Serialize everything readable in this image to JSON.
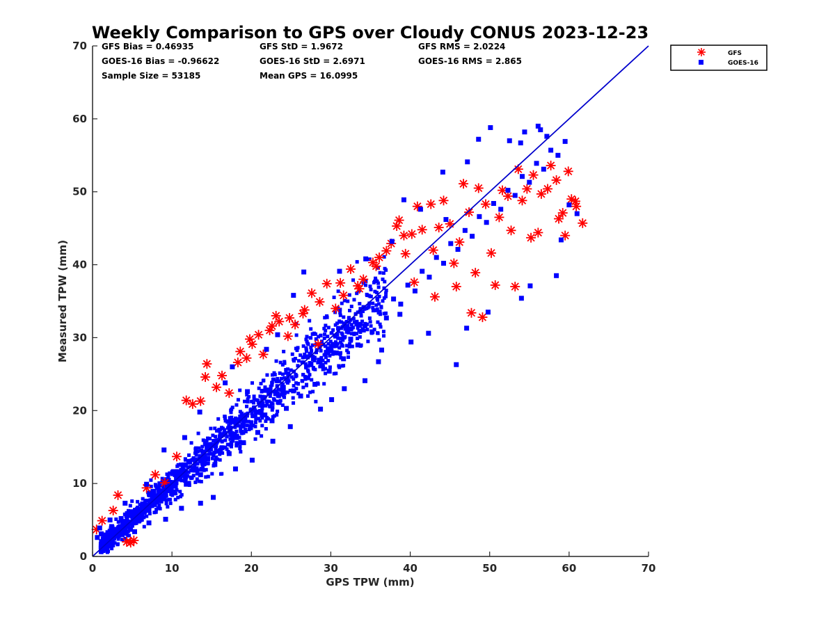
{
  "chart_data": {
    "type": "scatter",
    "title": "Weekly Comparison to GPS over Cloudy CONUS 2023-12-23",
    "xlabel": "GPS TPW (mm)",
    "ylabel": "Measured TPW (mm)",
    "xlim": [
      0,
      70
    ],
    "ylim": [
      0,
      70
    ],
    "xticks": [
      "0",
      "10",
      "20",
      "30",
      "40",
      "50",
      "60",
      "70"
    ],
    "yticks": [
      "0",
      "10",
      "20",
      "30",
      "40",
      "50",
      "60",
      "70"
    ],
    "grid": false,
    "legend_placement": "outside-top-right",
    "colors": {
      "GFS": "#ff0000",
      "GOES-16": "#0000ff",
      "reference_line": "#0000cc"
    },
    "stats": [
      [
        "GFS Bias = 0.46935",
        "GFS StD = 1.9672",
        "GFS RMS = 2.0224"
      ],
      [
        "GOES-16 Bias = -0.96622",
        "GOES-16 StD = 2.6971",
        "GOES-16 RMS = 2.865"
      ],
      [
        "Sample Size = 53185",
        "Mean GPS = 16.0995"
      ]
    ],
    "reference_line": {
      "x": [
        0,
        70
      ],
      "y": [
        0,
        70
      ]
    },
    "series": [
      {
        "name": "GFS",
        "marker": "asterisk",
        "points": [
          [
            0.5,
            3.7
          ],
          [
            1.2,
            4.9
          ],
          [
            2.6,
            6.3
          ],
          [
            3.2,
            8.4
          ],
          [
            4.3,
            2.0
          ],
          [
            4.8,
            1.9
          ],
          [
            5.2,
            2.2
          ],
          [
            6.8,
            9.4
          ],
          [
            7.9,
            11.2
          ],
          [
            9.1,
            10.1
          ],
          [
            10.6,
            13.7
          ],
          [
            11.8,
            21.4
          ],
          [
            12.6,
            20.9
          ],
          [
            13.6,
            21.3
          ],
          [
            14.2,
            24.6
          ],
          [
            14.4,
            26.4
          ],
          [
            15.6,
            23.2
          ],
          [
            16.3,
            24.8
          ],
          [
            17.2,
            22.4
          ],
          [
            18.3,
            26.6
          ],
          [
            18.6,
            28.1
          ],
          [
            19.4,
            27.2
          ],
          [
            20.1,
            29.1
          ],
          [
            20.9,
            30.4
          ],
          [
            21.5,
            27.7
          ],
          [
            22.3,
            31.0
          ],
          [
            23.1,
            33.0
          ],
          [
            23.5,
            32.2
          ],
          [
            24.6,
            30.2
          ],
          [
            25.5,
            31.8
          ],
          [
            26.5,
            33.3
          ],
          [
            27.6,
            36.1
          ],
          [
            28.6,
            34.9
          ],
          [
            29.5,
            37.4
          ],
          [
            30.6,
            34.0
          ],
          [
            31.6,
            35.8
          ],
          [
            32.5,
            39.4
          ],
          [
            33.4,
            37.1
          ],
          [
            34.1,
            38.0
          ],
          [
            35.3,
            40.3
          ],
          [
            36.1,
            41.0
          ],
          [
            37.0,
            41.9
          ],
          [
            37.6,
            42.9
          ],
          [
            38.3,
            45.3
          ],
          [
            38.6,
            46.1
          ],
          [
            39.2,
            44.0
          ],
          [
            39.4,
            41.5
          ],
          [
            40.2,
            44.2
          ],
          [
            40.5,
            37.6
          ],
          [
            40.9,
            48.0
          ],
          [
            41.5,
            44.8
          ],
          [
            42.6,
            48.3
          ],
          [
            43.1,
            35.6
          ],
          [
            43.6,
            45.1
          ],
          [
            44.2,
            48.8
          ],
          [
            45.0,
            45.6
          ],
          [
            45.5,
            40.2
          ],
          [
            46.2,
            43.1
          ],
          [
            46.7,
            51.1
          ],
          [
            47.4,
            47.2
          ],
          [
            47.7,
            33.4
          ],
          [
            48.2,
            38.9
          ],
          [
            48.6,
            50.5
          ],
          [
            49.1,
            32.8
          ],
          [
            49.5,
            48.3
          ],
          [
            50.2,
            41.6
          ],
          [
            50.7,
            37.2
          ],
          [
            51.2,
            46.5
          ],
          [
            51.6,
            50.2
          ],
          [
            52.3,
            49.4
          ],
          [
            52.7,
            44.7
          ],
          [
            53.2,
            37.0
          ],
          [
            53.6,
            53.1
          ],
          [
            54.1,
            48.8
          ],
          [
            54.7,
            50.4
          ],
          [
            55.2,
            43.7
          ],
          [
            55.5,
            52.3
          ],
          [
            56.1,
            44.4
          ],
          [
            56.5,
            49.7
          ],
          [
            57.3,
            50.4
          ],
          [
            57.7,
            53.6
          ],
          [
            58.4,
            51.6
          ],
          [
            58.7,
            46.3
          ],
          [
            59.2,
            47.1
          ],
          [
            59.5,
            44.0
          ],
          [
            59.9,
            52.8
          ],
          [
            60.3,
            49.0
          ],
          [
            60.8,
            48.7
          ],
          [
            60.9,
            48.0
          ],
          [
            61.7,
            45.7
          ],
          [
            26.7,
            33.8
          ],
          [
            31.2,
            37.5
          ],
          [
            35.7,
            39.8
          ],
          [
            28.4,
            29.1
          ],
          [
            24.8,
            32.7
          ],
          [
            22.6,
            31.6
          ],
          [
            19.8,
            29.8
          ],
          [
            33.6,
            36.7
          ],
          [
            42.9,
            42.0
          ],
          [
            45.8,
            37.0
          ]
        ]
      },
      {
        "name": "GOES-16",
        "marker": "square",
        "points": [
          [
            0.6,
            2.6
          ],
          [
            1.1,
            3.1
          ],
          [
            1.8,
            2.2
          ],
          [
            2.4,
            4.1
          ],
          [
            3.0,
            3.4
          ],
          [
            3.6,
            5.2
          ],
          [
            4.2,
            4.3
          ],
          [
            4.9,
            6.1
          ],
          [
            5.6,
            5.4
          ],
          [
            6.3,
            7.2
          ],
          [
            7.1,
            6.4
          ],
          [
            7.8,
            8.3
          ],
          [
            8.6,
            7.6
          ],
          [
            9.4,
            9.5
          ],
          [
            10.2,
            8.7
          ],
          [
            11.0,
            10.6
          ],
          [
            11.8,
            9.9
          ],
          [
            12.7,
            12.1
          ],
          [
            13.6,
            11.2
          ],
          [
            14.5,
            13.4
          ],
          [
            15.4,
            12.6
          ],
          [
            16.3,
            14.9
          ],
          [
            17.2,
            14.1
          ],
          [
            18.1,
            16.3
          ],
          [
            19.0,
            15.6
          ],
          [
            19.9,
            17.8
          ],
          [
            20.8,
            17.0
          ],
          [
            21.7,
            19.4
          ],
          [
            22.6,
            18.6
          ],
          [
            23.5,
            21.1
          ],
          [
            24.4,
            20.3
          ],
          [
            25.3,
            22.7
          ],
          [
            26.2,
            22.0
          ],
          [
            27.1,
            24.5
          ],
          [
            28.0,
            23.6
          ],
          [
            28.9,
            26.2
          ],
          [
            29.8,
            25.4
          ],
          [
            30.7,
            27.9
          ],
          [
            31.6,
            27.1
          ],
          [
            32.5,
            29.8
          ],
          [
            33.4,
            29.0
          ],
          [
            34.3,
            31.6
          ],
          [
            35.2,
            30.8
          ],
          [
            36.1,
            33.5
          ],
          [
            37.0,
            32.7
          ],
          [
            37.9,
            35.3
          ],
          [
            38.8,
            34.6
          ],
          [
            39.7,
            37.2
          ],
          [
            40.6,
            36.4
          ],
          [
            41.5,
            39.1
          ],
          [
            42.4,
            38.3
          ],
          [
            43.3,
            41.0
          ],
          [
            44.2,
            40.2
          ],
          [
            45.1,
            42.9
          ],
          [
            46.0,
            42.1
          ],
          [
            46.9,
            44.7
          ],
          [
            47.8,
            43.9
          ],
          [
            48.7,
            46.6
          ],
          [
            49.6,
            45.8
          ],
          [
            50.5,
            48.4
          ],
          [
            51.4,
            47.6
          ],
          [
            52.3,
            50.2
          ],
          [
            53.2,
            49.5
          ],
          [
            54.1,
            52.1
          ],
          [
            55.0,
            51.3
          ],
          [
            55.9,
            53.9
          ],
          [
            56.8,
            53.1
          ],
          [
            57.7,
            55.7
          ],
          [
            58.6,
            55.0
          ],
          [
            59.5,
            56.9
          ],
          [
            50.1,
            58.8
          ],
          [
            56.1,
            59.0
          ],
          [
            56.4,
            58.5
          ],
          [
            57.2,
            57.6
          ],
          [
            54.4,
            58.2
          ],
          [
            48.6,
            57.2
          ],
          [
            52.5,
            57.0
          ],
          [
            44.5,
            46.2
          ],
          [
            45.8,
            26.3
          ],
          [
            42.3,
            30.6
          ],
          [
            40.1,
            29.4
          ],
          [
            36.0,
            26.7
          ],
          [
            34.3,
            24.1
          ],
          [
            31.7,
            23.0
          ],
          [
            30.1,
            21.5
          ],
          [
            28.7,
            20.2
          ],
          [
            24.9,
            17.8
          ],
          [
            22.7,
            15.8
          ],
          [
            20.1,
            13.2
          ],
          [
            18.0,
            12.0
          ],
          [
            15.2,
            8.1
          ],
          [
            13.6,
            7.3
          ],
          [
            11.2,
            6.6
          ],
          [
            9.2,
            5.1
          ],
          [
            7.1,
            4.6
          ],
          [
            5.3,
            3.4
          ],
          [
            58.4,
            38.5
          ],
          [
            54.0,
            35.4
          ],
          [
            55.1,
            37.1
          ],
          [
            49.8,
            33.5
          ],
          [
            47.1,
            31.3
          ],
          [
            26.6,
            39.0
          ],
          [
            25.3,
            35.8
          ],
          [
            23.3,
            30.4
          ],
          [
            21.9,
            28.4
          ],
          [
            17.6,
            26.0
          ],
          [
            16.7,
            23.8
          ],
          [
            13.5,
            19.8
          ],
          [
            11.6,
            16.3
          ],
          [
            9.0,
            14.6
          ],
          [
            31.1,
            39.1
          ],
          [
            34.4,
            40.8
          ],
          [
            37.7,
            43.2
          ],
          [
            39.2,
            48.9
          ],
          [
            41.3,
            47.6
          ],
          [
            44.1,
            52.7
          ],
          [
            47.2,
            54.1
          ],
          [
            53.9,
            56.7
          ],
          [
            60.0,
            48.2
          ],
          [
            61.0,
            47.0
          ],
          [
            36.4,
            28.3
          ],
          [
            38.7,
            33.2
          ],
          [
            27.5,
            26.4
          ],
          [
            19.5,
            22.6
          ],
          [
            14.6,
            15.3
          ],
          [
            6.8,
            9.9
          ],
          [
            4.1,
            7.3
          ],
          [
            2.2,
            5.0
          ],
          [
            0.9,
            3.9
          ],
          [
            59.0,
            43.4
          ]
        ]
      }
    ]
  }
}
